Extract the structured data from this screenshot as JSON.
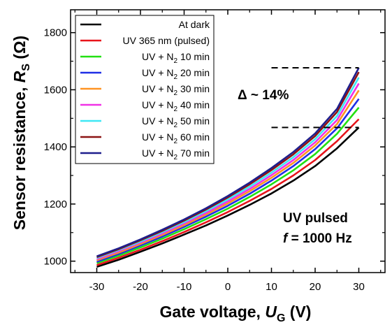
{
  "chart_data": {
    "type": "line",
    "xlabel": {
      "main": "Gate voltage, ",
      "var": "U",
      "sub": "G",
      "unit": " (V)"
    },
    "ylabel": {
      "main": "Sensor resistance, ",
      "var": "R",
      "sub": "S",
      "unit": " (Ω)"
    },
    "xlim": [
      -36,
      36
    ],
    "ylim": [
      960,
      1880
    ],
    "xticks": [
      -30,
      -20,
      -10,
      0,
      10,
      20,
      30
    ],
    "yticks": [
      1000,
      1200,
      1400,
      1600,
      1800
    ],
    "x": [
      -30,
      -25,
      -20,
      -15,
      -10,
      -5,
      0,
      5,
      10,
      15,
      20,
      25,
      30
    ],
    "series": [
      {
        "name": "At dark",
        "legend": {
          "pre": "At dark"
        },
        "color": "#000000",
        "values": [
          980,
          1005,
          1033,
          1062,
          1093,
          1125,
          1160,
          1197,
          1237,
          1282,
          1333,
          1395,
          1468
        ]
      },
      {
        "name": "UV 365 nm (pulsed)",
        "legend": {
          "pre": "UV 365 nm (pulsed)"
        },
        "color": "#e8141b",
        "values": [
          986,
          1012,
          1040,
          1070,
          1102,
          1136,
          1172,
          1211,
          1253,
          1300,
          1354,
          1420,
          1497
        ]
      },
      {
        "name": "UV + N2 10 min",
        "legend": {
          "pre": "UV + N",
          "sub": "2",
          "post": " 10 min"
        },
        "color": "#22e012",
        "values": [
          993,
          1019,
          1048,
          1079,
          1112,
          1147,
          1184,
          1225,
          1269,
          1318,
          1375,
          1446,
          1538
        ]
      },
      {
        "name": "UV + N2 20 min",
        "legend": {
          "pre": "UV + N",
          "sub": "2",
          "post": " 20 min"
        },
        "color": "#1f2ee6",
        "values": [
          998,
          1025,
          1055,
          1086,
          1120,
          1156,
          1194,
          1236,
          1282,
          1333,
          1392,
          1465,
          1568
        ]
      },
      {
        "name": "UV + N2 30 min",
        "legend": {
          "pre": "UV + N",
          "sub": "2",
          "post": " 30 min"
        },
        "color": "#ff9422",
        "values": [
          1003,
          1030,
          1060,
          1092,
          1126,
          1163,
          1202,
          1245,
          1292,
          1344,
          1405,
          1480,
          1598
        ]
      },
      {
        "name": "UV + N2 40 min",
        "legend": {
          "pre": "UV + N",
          "sub": "2",
          "post": " 40 min"
        },
        "color": "#f032e6",
        "values": [
          1007,
          1035,
          1065,
          1097,
          1132,
          1169,
          1209,
          1253,
          1301,
          1354,
          1416,
          1494,
          1622
        ]
      },
      {
        "name": "UV + N2 50 min",
        "legend": {
          "pre": "UV + N",
          "sub": "2",
          "post": " 50 min"
        },
        "color": "#3ee8f5",
        "values": [
          1011,
          1039,
          1069,
          1102,
          1137,
          1175,
          1216,
          1261,
          1310,
          1364,
          1427,
          1508,
          1643
        ]
      },
      {
        "name": "UV + N2 60 min",
        "legend": {
          "pre": "UV + N",
          "sub": "2",
          "post": " 60 min"
        },
        "color": "#8b1414",
        "values": [
          1014,
          1042,
          1073,
          1106,
          1142,
          1181,
          1223,
          1269,
          1319,
          1374,
          1438,
          1522,
          1662
        ]
      },
      {
        "name": "UV + N2 70 min",
        "legend": {
          "pre": "UV + N",
          "sub": "2",
          "post": " 70 min"
        },
        "color": "#1e1e8c",
        "values": [
          1017,
          1045,
          1076,
          1110,
          1146,
          1185,
          1228,
          1275,
          1326,
          1382,
          1447,
          1533,
          1677
        ]
      }
    ],
    "annotations": {
      "delta": "Δ ~ 14%",
      "uv_line1": "UV pulsed",
      "uv_f": "f",
      "uv_rest": " = 1000 Hz",
      "ref_high": 1677,
      "ref_low": 1468,
      "ref_x_start": 10
    },
    "legend_position": "top-left",
    "grid": false
  }
}
